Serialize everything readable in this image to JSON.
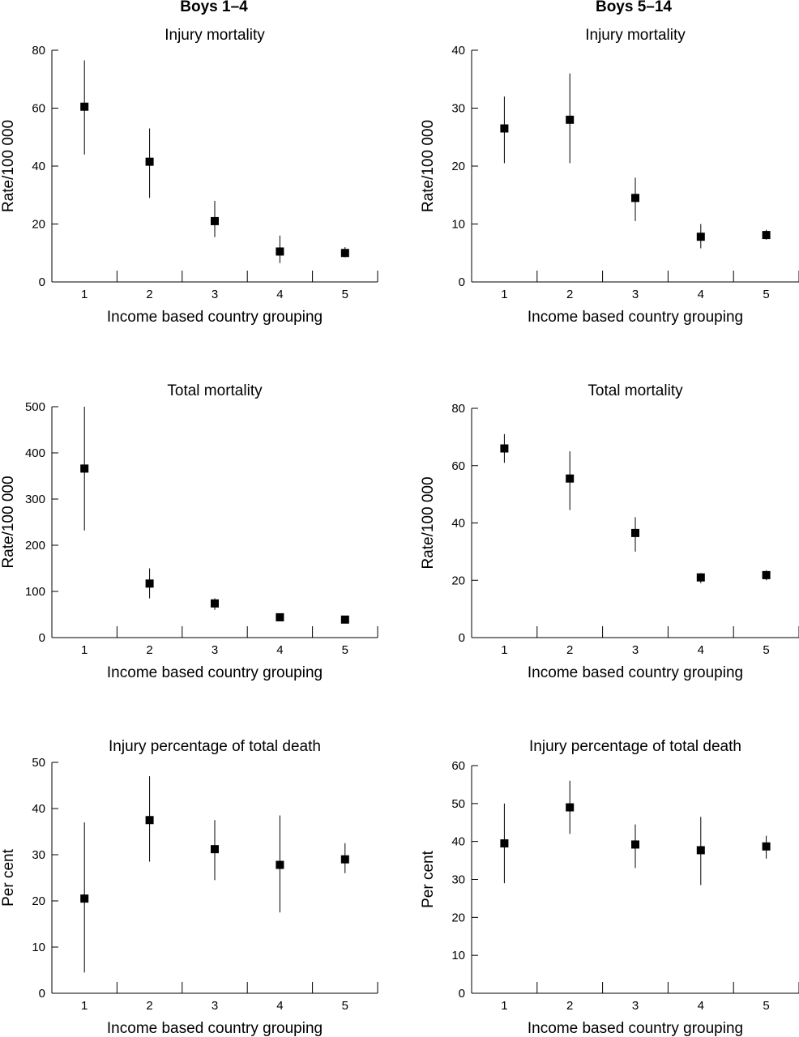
{
  "figure": {
    "column_headers": [
      "Boys 1–4",
      "Boys 5–14"
    ]
  },
  "chart_data": [
    {
      "type": "scatter",
      "group": "Boys 1–4",
      "title": "Injury  mortality",
      "xlabel": "Income based country grouping",
      "ylabel": "Rate/100 000",
      "x": [
        1,
        2,
        3,
        4,
        5
      ],
      "xticks": [
        "1",
        "2",
        "3",
        "4",
        "5"
      ],
      "xlim": [
        0.5,
        5.5
      ],
      "ylim": [
        0,
        80
      ],
      "yticks": [
        0,
        20,
        40,
        60,
        80
      ],
      "values": [
        60.5,
        41.5,
        21.0,
        10.5,
        10.0
      ],
      "error_low": [
        44,
        29,
        15.5,
        6.5,
        8.5
      ],
      "error_high": [
        76.5,
        53,
        28,
        16,
        12
      ],
      "grid": false
    },
    {
      "type": "scatter",
      "group": "Boys 5–14",
      "title": "Injury  mortality",
      "xlabel": "Income based country grouping",
      "ylabel": "Rate/100 000",
      "x": [
        1,
        2,
        3,
        4,
        5
      ],
      "xticks": [
        "1",
        "2",
        "3",
        "4",
        "5"
      ],
      "xlim": [
        0.5,
        5.5
      ],
      "ylim": [
        0,
        40
      ],
      "yticks": [
        0,
        10,
        20,
        30,
        40
      ],
      "values": [
        26.5,
        28.0,
        14.5,
        7.8,
        8.1
      ],
      "error_low": [
        20.5,
        20.5,
        10.5,
        5.8,
        7.3
      ],
      "error_high": [
        32,
        36,
        18,
        10,
        9
      ],
      "grid": false
    },
    {
      "type": "scatter",
      "group": "Boys 1–4",
      "title": "Total mortality",
      "xlabel": "Income based country grouping",
      "ylabel": "Rate/100 000",
      "x": [
        1,
        2,
        3,
        4,
        5
      ],
      "xticks": [
        "1",
        "2",
        "3",
        "4",
        "5"
      ],
      "xlim": [
        0.5,
        5.5
      ],
      "ylim": [
        0,
        500
      ],
      "yticks": [
        0,
        100,
        200,
        300,
        400,
        500
      ],
      "values": [
        366,
        117,
        74,
        44,
        39
      ],
      "error_low": [
        232,
        85,
        60,
        38,
        34
      ],
      "error_high": [
        500,
        150,
        85,
        50,
        44
      ],
      "grid": false
    },
    {
      "type": "scatter",
      "group": "Boys 5–14",
      "title": "Total mortality",
      "xlabel": "Income based country grouping",
      "ylabel": "Rate/100 000",
      "x": [
        1,
        2,
        3,
        4,
        5
      ],
      "xticks": [
        "1",
        "2",
        "3",
        "4",
        "5"
      ],
      "xlim": [
        0.5,
        5.5
      ],
      "ylim": [
        0,
        80
      ],
      "yticks": [
        0,
        20,
        40,
        60,
        80
      ],
      "values": [
        66,
        55.5,
        36.5,
        21,
        21.8
      ],
      "error_low": [
        61,
        44.5,
        30,
        19,
        20
      ],
      "error_high": [
        71,
        65,
        42,
        22.5,
        23.5
      ],
      "grid": false
    },
    {
      "type": "scatter",
      "group": "Boys 1–4",
      "title": "Injury percentage of total death",
      "xlabel": "Income based country grouping",
      "ylabel": "Per cent",
      "x": [
        1,
        2,
        3,
        4,
        5
      ],
      "xticks": [
        "1",
        "2",
        "3",
        "4",
        "5"
      ],
      "xlim": [
        0.5,
        5.5
      ],
      "ylim": [
        0,
        50
      ],
      "yticks": [
        0,
        10,
        20,
        30,
        40,
        50
      ],
      "values": [
        20.5,
        37.5,
        31.2,
        27.8,
        29
      ],
      "error_low": [
        4.5,
        28.5,
        24.5,
        17.5,
        26
      ],
      "error_high": [
        37,
        47,
        37.5,
        38.5,
        32.5
      ],
      "grid": false
    },
    {
      "type": "scatter",
      "group": "Boys 5–14",
      "title": "Injury percentage of total death",
      "xlabel": "Income based country grouping",
      "ylabel": "Per cent",
      "x": [
        1,
        2,
        3,
        4,
        5
      ],
      "xticks": [
        "1",
        "2",
        "3",
        "4",
        "5"
      ],
      "xlim": [
        0.5,
        5.5
      ],
      "ylim": [
        0,
        60
      ],
      "yticks": [
        0,
        10,
        20,
        30,
        40,
        50,
        60
      ],
      "values": [
        39.5,
        49,
        39.2,
        37.7,
        38.7
      ],
      "error_low": [
        29,
        42,
        33,
        28.5,
        35.5
      ],
      "error_high": [
        50,
        56,
        44.5,
        46.5,
        41.5
      ],
      "grid": false
    }
  ]
}
